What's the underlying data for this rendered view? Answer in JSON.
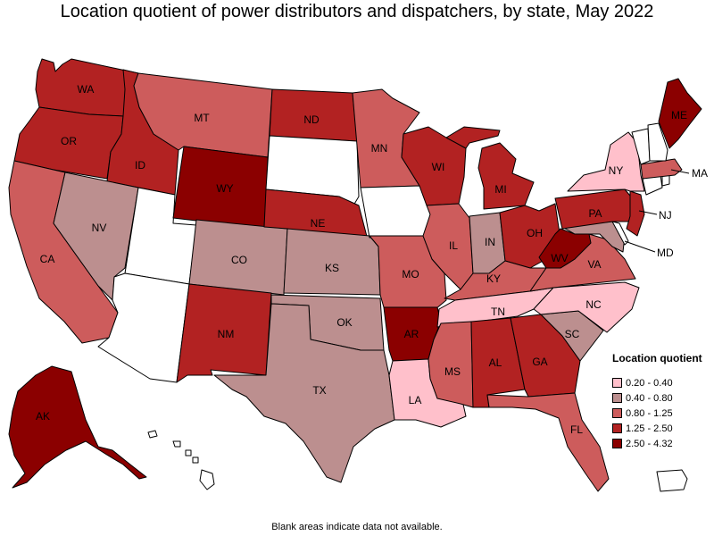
{
  "title": "Location quotient of power distributors and dispatchers, by state, May 2022",
  "footnote": "Blank areas indicate data not available.",
  "legend": {
    "title": "Location quotient",
    "bins": [
      {
        "label": "0.20 - 0.40",
        "color": "#ffc0cb"
      },
      {
        "label": "0.40 - 0.80",
        "color": "#bc8f8f"
      },
      {
        "label": "0.80 - 1.25",
        "color": "#cd5c5c"
      },
      {
        "label": "1.25 - 2.50",
        "color": "#b22222"
      },
      {
        "label": "2.50 - 4.32",
        "color": "#8b0000"
      }
    ]
  },
  "no_data_color": "#ffffff",
  "states": [
    {
      "abbr": "WA",
      "bin": 3
    },
    {
      "abbr": "OR",
      "bin": 3
    },
    {
      "abbr": "CA",
      "bin": 2
    },
    {
      "abbr": "ID",
      "bin": 3
    },
    {
      "abbr": "NV",
      "bin": 1
    },
    {
      "abbr": "UT",
      "bin": null
    },
    {
      "abbr": "AZ",
      "bin": null
    },
    {
      "abbr": "MT",
      "bin": 2
    },
    {
      "abbr": "WY",
      "bin": 4
    },
    {
      "abbr": "CO",
      "bin": 1
    },
    {
      "abbr": "NM",
      "bin": 3
    },
    {
      "abbr": "ND",
      "bin": 3
    },
    {
      "abbr": "SD",
      "bin": null
    },
    {
      "abbr": "NE",
      "bin": 3
    },
    {
      "abbr": "KS",
      "bin": 1
    },
    {
      "abbr": "OK",
      "bin": 1
    },
    {
      "abbr": "TX",
      "bin": 1
    },
    {
      "abbr": "MN",
      "bin": 2
    },
    {
      "abbr": "IA",
      "bin": null
    },
    {
      "abbr": "MO",
      "bin": 2
    },
    {
      "abbr": "AR",
      "bin": 4
    },
    {
      "abbr": "LA",
      "bin": 0
    },
    {
      "abbr": "WI",
      "bin": 3
    },
    {
      "abbr": "IL",
      "bin": 2
    },
    {
      "abbr": "MI",
      "bin": 3
    },
    {
      "abbr": "IN",
      "bin": 1
    },
    {
      "abbr": "OH",
      "bin": 3
    },
    {
      "abbr": "KY",
      "bin": 2
    },
    {
      "abbr": "TN",
      "bin": 0
    },
    {
      "abbr": "MS",
      "bin": 2
    },
    {
      "abbr": "AL",
      "bin": 3
    },
    {
      "abbr": "GA",
      "bin": 3
    },
    {
      "abbr": "FL",
      "bin": 2
    },
    {
      "abbr": "SC",
      "bin": 1
    },
    {
      "abbr": "NC",
      "bin": 0
    },
    {
      "abbr": "VA",
      "bin": 2
    },
    {
      "abbr": "WV",
      "bin": 4
    },
    {
      "abbr": "MD",
      "bin": 1
    },
    {
      "abbr": "DE",
      "bin": null
    },
    {
      "abbr": "PA",
      "bin": 3
    },
    {
      "abbr": "NJ",
      "bin": 3
    },
    {
      "abbr": "NY",
      "bin": 0
    },
    {
      "abbr": "CT",
      "bin": null
    },
    {
      "abbr": "RI",
      "bin": null
    },
    {
      "abbr": "MA",
      "bin": 2
    },
    {
      "abbr": "VT",
      "bin": null
    },
    {
      "abbr": "NH",
      "bin": null
    },
    {
      "abbr": "ME",
      "bin": 4
    },
    {
      "abbr": "AK",
      "bin": 4
    },
    {
      "abbr": "HI",
      "bin": null
    },
    {
      "abbr": "PR",
      "bin": null
    }
  ]
}
